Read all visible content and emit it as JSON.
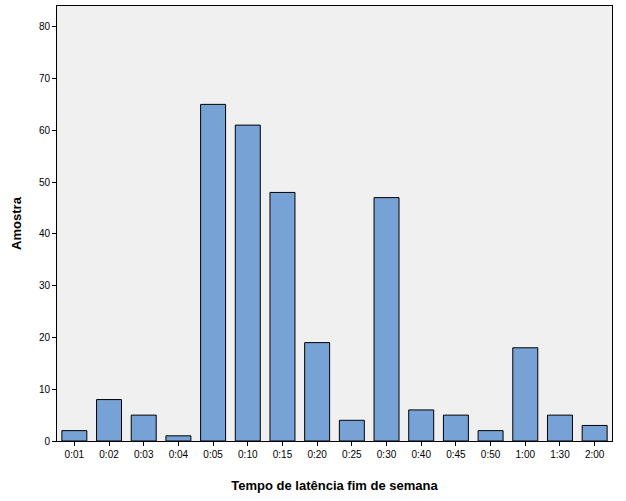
{
  "chart_data": {
    "type": "bar",
    "xlabel": "Tempo de latência fim de semana",
    "ylabel": "Amostra",
    "categories": [
      "0:01",
      "0:02",
      "0:03",
      "0:04",
      "0:05",
      "0:10",
      "0:15",
      "0:20",
      "0:25",
      "0:30",
      "0:40",
      "0:45",
      "0:50",
      "1:00",
      "1:30",
      "2:00"
    ],
    "values": [
      2,
      8,
      5,
      1,
      65,
      61,
      48,
      19,
      4,
      47,
      6,
      5,
      2,
      18,
      5,
      3
    ],
    "color": "#76a2d6",
    "ylim": [
      0,
      84
    ],
    "yticks": [
      0,
      10,
      20,
      30,
      40,
      50,
      60,
      70,
      80
    ],
    "grid": false
  }
}
